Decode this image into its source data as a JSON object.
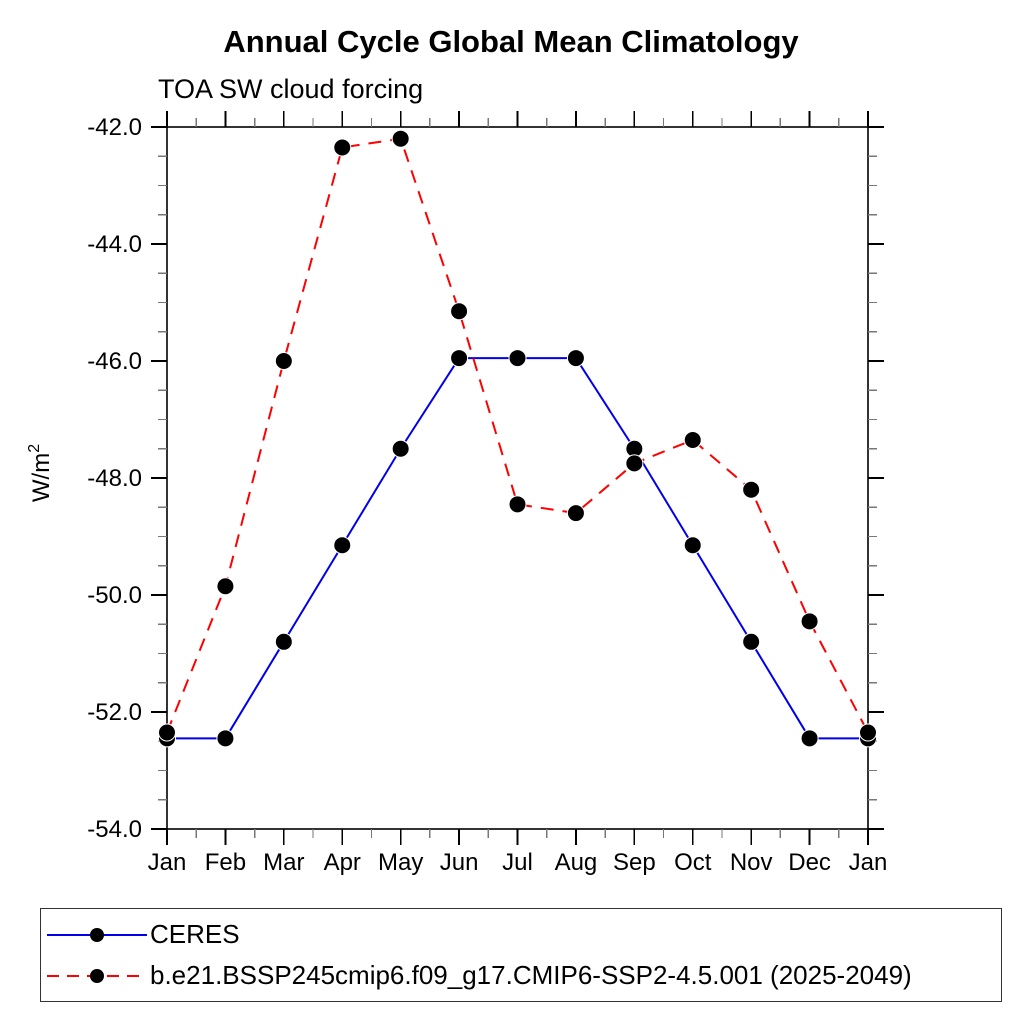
{
  "chart_data": {
    "type": "line",
    "title": "Annual Cycle Global Mean Climatology",
    "subtitle": "TOA SW cloud forcing",
    "ylabel": "W/m",
    "ylabel_superscript": "2",
    "x_categories": [
      "Jan",
      "Feb",
      "Mar",
      "Apr",
      "May",
      "Jun",
      "Jul",
      "Aug",
      "Sep",
      "Oct",
      "Nov",
      "Dec",
      "Jan"
    ],
    "ylim": [
      -54,
      -42
    ],
    "y_major_step": 2,
    "y_minor_step": 0.5,
    "y_tick_labels": [
      "-42.0",
      "-44.0",
      "-46.0",
      "-48.0",
      "-50.0",
      "-52.0",
      "-54.0"
    ],
    "x_minor_ticks": "month-midpoints",
    "grid": false,
    "legend_position": "bottom-left-box",
    "axis_color": "#000000",
    "minor_tick_color": "#777777",
    "series": [
      {
        "name": "CERES",
        "color": "#0000ee",
        "line_style": "solid",
        "marker": "filled-circle",
        "marker_color": "#000000",
        "values": [
          -52.45,
          -52.45,
          -50.8,
          -49.15,
          -47.5,
          -45.95,
          -45.95,
          -45.95,
          -47.5,
          -49.15,
          -50.8,
          -52.45,
          -52.45
        ]
      },
      {
        "name": "b.e21.BSSP245cmip6.f09_g17.CMIP6-SSP2-4.5.001 (2025-2049)",
        "color": "#ff0000",
        "line_style": "dashed",
        "marker": "filled-circle",
        "marker_color": "#000000",
        "values": [
          -52.35,
          -49.85,
          -46.0,
          -42.35,
          -42.2,
          -45.15,
          -48.45,
          -48.6,
          -47.75,
          -47.35,
          -48.2,
          -50.45,
          -52.35
        ]
      }
    ]
  }
}
